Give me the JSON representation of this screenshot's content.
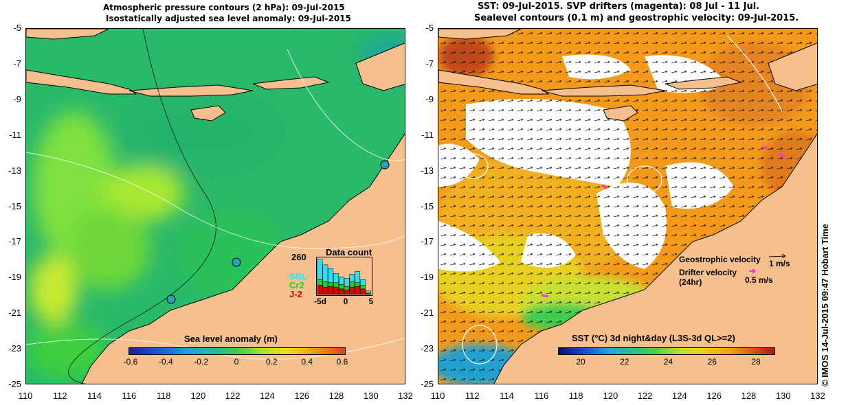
{
  "left_panel": {
    "title_line1": "Atmospheric pressure contours (2 hPa): 09-Jul-2015",
    "title_line2": "Isostatically adjusted sea level anomaly: 09-Jul-2015",
    "colorbar": {
      "label": "Sea level anomaly (m)",
      "ticks": [
        "-0.6",
        "-0.4",
        "-0.2",
        "0",
        "0.2",
        "0.4",
        "0.6"
      ]
    },
    "data_count": {
      "title": "Data count",
      "max": "260",
      "satellites": [
        {
          "name": "SRL",
          "color": "#33ddee"
        },
        {
          "name": "Cr2",
          "color": "#22cc22"
        },
        {
          "name": "J-2",
          "color": "#dd0000"
        }
      ],
      "x_ticks": [
        "-5d",
        "0",
        "5"
      ],
      "bars": [
        {
          "j2": 0.25,
          "cr2": 0.15,
          "srl": 0.55
        },
        {
          "j2": 0.2,
          "cr2": 0.15,
          "srl": 0.45
        },
        {
          "j2": 0.22,
          "cr2": 0.1,
          "srl": 0.38
        },
        {
          "j2": 0.2,
          "cr2": 0.12,
          "srl": 0.25
        },
        {
          "j2": 0.15,
          "cr2": 0.12,
          "srl": 0.2
        },
        {
          "j2": 0.12,
          "cr2": 0.1,
          "srl": 0.22
        },
        {
          "j2": 0.2,
          "cr2": 0.15,
          "srl": 0.2
        },
        {
          "j2": 0.22,
          "cr2": 0.1,
          "srl": 0.3
        },
        {
          "j2": 0.15,
          "cr2": 0.1,
          "srl": 0.15
        },
        {
          "j2": 0.02,
          "cr2": 0.02,
          "srl": 0.06
        }
      ]
    }
  },
  "right_panel": {
    "title_line1": "SST: 09-Jul-2015. SVP drifters (magenta): 08 Jul - 11 Jul.",
    "title_line2": "Sealevel contours (0.1 m) and geostrophic velocity: 09-Jul-2015.",
    "colorbar": {
      "label": "SST (°C) 3d night&day (L3S-3d QL>=2)",
      "ticks": [
        "20",
        "22",
        "24",
        "26",
        "28"
      ]
    },
    "legend": {
      "geostrophic_label": "Geostrophic velocity",
      "geostrophic_scale": "1 m/s",
      "drifter_label": "Drifter velocity",
      "drifter_sub": "(24hr)",
      "drifter_scale": "0.5 m/s"
    }
  },
  "axes": {
    "lon_ticks": [
      "110",
      "112",
      "114",
      "116",
      "118",
      "120",
      "122",
      "124",
      "126",
      "128",
      "130",
      "132"
    ],
    "lat_ticks": [
      "-5",
      "-7",
      "-9",
      "-11",
      "-13",
      "-15",
      "-17",
      "-19",
      "-21",
      "-23",
      "-25"
    ]
  },
  "credit": "© IMOS 14-Jul-2015 09:47 Hobart Time",
  "colors": {
    "land": "#f6c08e",
    "ocean_green": "#3ccf3c",
    "no_data": "#ffffff"
  }
}
